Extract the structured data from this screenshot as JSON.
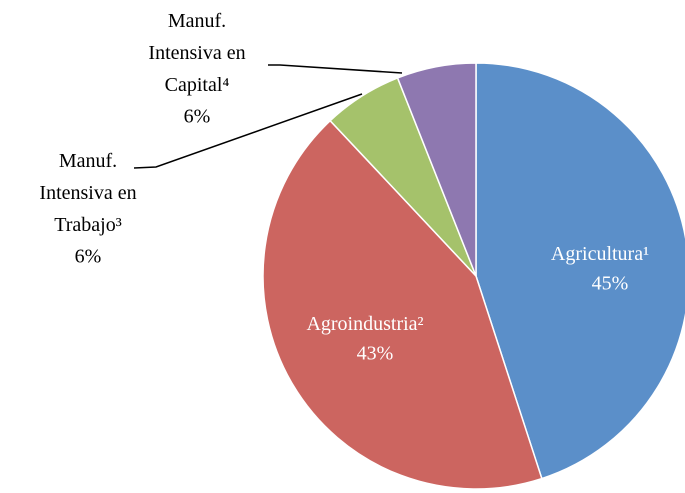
{
  "chart_data": {
    "type": "pie",
    "categories": [
      "Agricultura¹",
      "Agroindustria²",
      "Manuf. Intensiva en Trabajo³",
      "Manuf. Intensiva en Capital⁴"
    ],
    "values": [
      45,
      43,
      6,
      6
    ],
    "value_labels": [
      "45%",
      "43%",
      "6%",
      "6%"
    ],
    "colors": [
      "#5b8fc9",
      "#cc6560",
      "#a5c26b",
      "#8e78b0"
    ]
  }
}
